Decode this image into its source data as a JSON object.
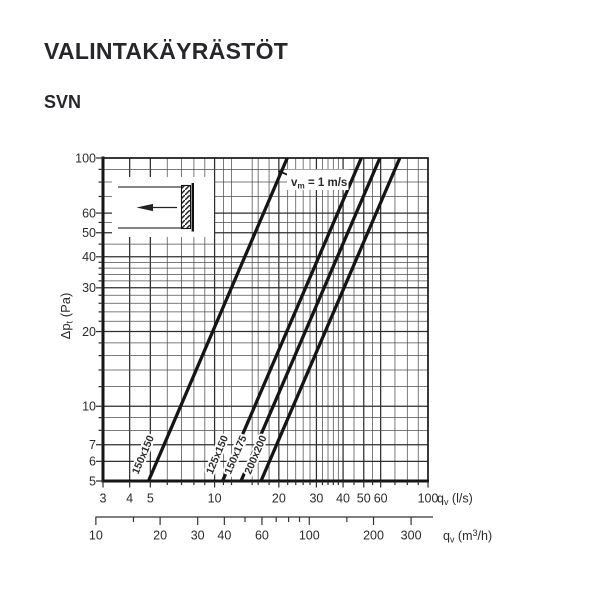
{
  "page": {
    "title": "VALINTAKÄYRÄSTÖT",
    "subtitle": "SVN",
    "background": "#ffffff",
    "ink": "#26262b"
  },
  "inset_icon": "airflow-left-through-grille",
  "chart_data": {
    "type": "line",
    "scale": "log-log",
    "grid": true,
    "x_axis": {
      "label_parts": [
        {
          "t": "q"
        },
        {
          "t": "v",
          "sub": true
        },
        {
          "t": " (l/s)"
        }
      ],
      "min": 3,
      "max": 100,
      "labeled_ticks": [
        3,
        4,
        5,
        10,
        20,
        30,
        40,
        50,
        60,
        100
      ],
      "gridlines": [
        3,
        4,
        5,
        6,
        7,
        8,
        9,
        10,
        11,
        12,
        15,
        16,
        18,
        20,
        22,
        24,
        26,
        28,
        30,
        32,
        34,
        36,
        38,
        40,
        45,
        50,
        55,
        60,
        70,
        80,
        90,
        100
      ]
    },
    "y_axis": {
      "label_parts": [
        {
          "t": "Δp"
        },
        {
          "t": "t",
          "sub": true
        },
        {
          "t": " (Pa)"
        }
      ],
      "min": 5,
      "max": 100,
      "labeled_ticks": [
        5,
        6,
        7,
        10,
        20,
        30,
        40,
        50,
        60,
        100
      ],
      "gridlines": [
        5,
        6,
        7,
        8,
        9,
        10,
        12,
        14,
        16,
        18,
        20,
        22,
        24,
        26,
        28,
        30,
        32,
        34,
        36,
        38,
        40,
        45,
        50,
        55,
        60,
        70,
        80,
        90,
        100
      ]
    },
    "x_axis_secondary": {
      "label_parts": [
        {
          "t": "q"
        },
        {
          "t": "v",
          "sub": true
        },
        {
          "t": " (m"
        },
        {
          "t": "3",
          "sup": true
        },
        {
          "t": "/h)"
        }
      ],
      "unit_factor_from_ls": 3.6,
      "labeled_ticks": [
        10,
        20,
        30,
        40,
        60,
        100,
        200,
        300
      ],
      "ticks": [
        10,
        15,
        20,
        30,
        40,
        50,
        60,
        70,
        80,
        90,
        100,
        150,
        200,
        300
      ]
    },
    "series": [
      {
        "name": "150x150",
        "points_q_dp": [
          [
            4.9,
            5
          ],
          [
            21.9,
            100
          ]
        ]
      },
      {
        "name": "125x150",
        "points_q_dp": [
          [
            10.9,
            5
          ],
          [
            48.7,
            100
          ]
        ]
      },
      {
        "name": "150x175",
        "points_q_dp": [
          [
            13.3,
            5
          ],
          [
            59.5,
            100
          ]
        ]
      },
      {
        "name": "200x200",
        "points_q_dp": [
          [
            16.5,
            5
          ],
          [
            73.8,
            100
          ]
        ]
      }
    ],
    "annotation": {
      "label_parts": [
        {
          "t": "v"
        },
        {
          "t": "m",
          "sub": true
        },
        {
          "t": " = 1 m/s"
        }
      ],
      "marker_series": "150x150",
      "marker_q_dp": [
        21,
        87
      ]
    }
  }
}
